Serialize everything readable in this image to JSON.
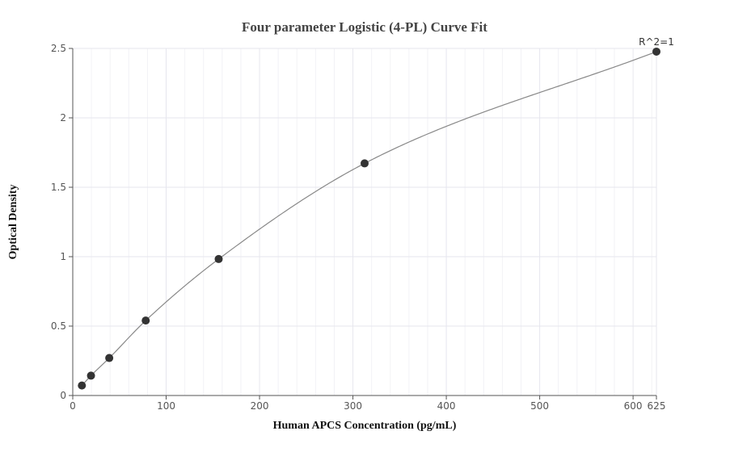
{
  "chart_data": {
    "type": "scatter",
    "title": "Four parameter Logistic (4-PL) Curve Fit",
    "xlabel": "Human APCS Concentration (pg/mL)",
    "ylabel": "Optical Density",
    "xlim": [
      0,
      625
    ],
    "ylim": [
      0,
      2.5
    ],
    "x_ticks": [
      0,
      100,
      200,
      300,
      400,
      500,
      600,
      625
    ],
    "x_tick_labels": [
      "0",
      "100",
      "200",
      "300",
      "400",
      "500",
      "600",
      "625"
    ],
    "y_ticks": [
      0,
      0.5,
      1,
      1.5,
      2,
      2.5
    ],
    "y_tick_labels": [
      "0",
      "0.5",
      "1",
      "1.5",
      "2",
      "2.5"
    ],
    "grid": true,
    "annotation": "R^2=1",
    "series": [
      {
        "points": [
          {
            "x": 9.77,
            "y": 0.072
          },
          {
            "x": 19.53,
            "y": 0.143
          },
          {
            "x": 39.06,
            "y": 0.27
          },
          {
            "x": 78.13,
            "y": 0.54
          },
          {
            "x": 156.25,
            "y": 0.983
          },
          {
            "x": 312.5,
            "y": 1.672
          },
          {
            "x": 625,
            "y": 2.477
          }
        ]
      }
    ],
    "colors": {
      "curve": "#888888",
      "points": "#333333",
      "grid": "#e6e6ee",
      "minor_grid": "#f2f2f6",
      "axis": "#555555"
    }
  }
}
